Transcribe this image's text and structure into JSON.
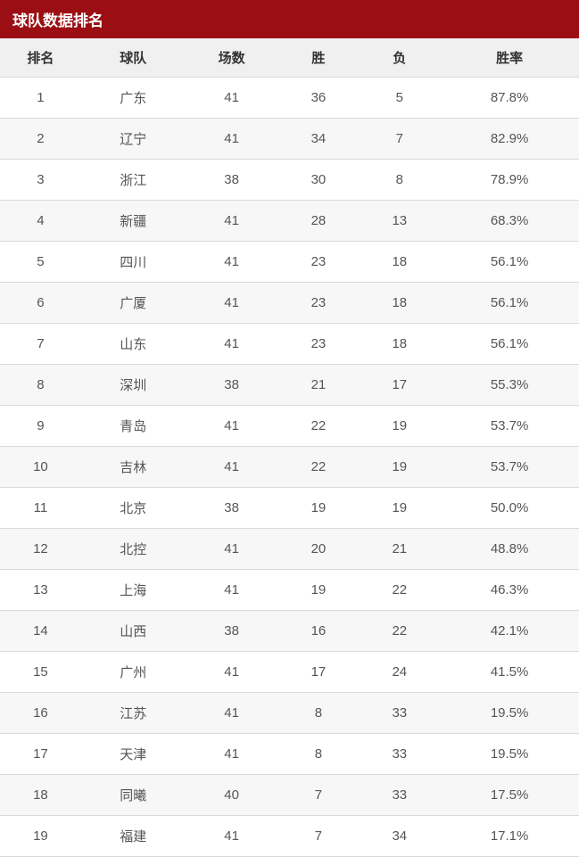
{
  "title": "球队数据排名",
  "styling": {
    "header_bg": "#9b0f14",
    "thead_bg": "#f0f0f0",
    "row_odd_bg": "#ffffff",
    "row_even_bg": "#f7f7f7",
    "border_color": "#d9d9d9",
    "th_text_color": "#333333",
    "td_text_color": "#555555",
    "title_fontsize": 17,
    "cell_fontsize": 15
  },
  "table": {
    "type": "table",
    "columns": [
      {
        "key": "rank",
        "label": "排名",
        "width_pct": 14,
        "align": "center"
      },
      {
        "key": "team",
        "label": "球队",
        "width_pct": 18,
        "align": "center"
      },
      {
        "key": "games",
        "label": "场数",
        "width_pct": 16,
        "align": "center"
      },
      {
        "key": "win",
        "label": "胜",
        "width_pct": 14,
        "align": "center"
      },
      {
        "key": "loss",
        "label": "负",
        "width_pct": 14,
        "align": "center"
      },
      {
        "key": "rate",
        "label": "胜率",
        "width_pct": 24,
        "align": "center"
      }
    ],
    "rows": [
      {
        "rank": "1",
        "team": "广东",
        "games": "41",
        "win": "36",
        "loss": "5",
        "rate": "87.8%"
      },
      {
        "rank": "2",
        "team": "辽宁",
        "games": "41",
        "win": "34",
        "loss": "7",
        "rate": "82.9%"
      },
      {
        "rank": "3",
        "team": "浙江",
        "games": "38",
        "win": "30",
        "loss": "8",
        "rate": "78.9%"
      },
      {
        "rank": "4",
        "team": "新疆",
        "games": "41",
        "win": "28",
        "loss": "13",
        "rate": "68.3%"
      },
      {
        "rank": "5",
        "team": "四川",
        "games": "41",
        "win": "23",
        "loss": "18",
        "rate": "56.1%"
      },
      {
        "rank": "6",
        "team": "广厦",
        "games": "41",
        "win": "23",
        "loss": "18",
        "rate": "56.1%"
      },
      {
        "rank": "7",
        "team": "山东",
        "games": "41",
        "win": "23",
        "loss": "18",
        "rate": "56.1%"
      },
      {
        "rank": "8",
        "team": "深圳",
        "games": "38",
        "win": "21",
        "loss": "17",
        "rate": "55.3%"
      },
      {
        "rank": "9",
        "team": "青岛",
        "games": "41",
        "win": "22",
        "loss": "19",
        "rate": "53.7%"
      },
      {
        "rank": "10",
        "team": "吉林",
        "games": "41",
        "win": "22",
        "loss": "19",
        "rate": "53.7%"
      },
      {
        "rank": "11",
        "team": "北京",
        "games": "38",
        "win": "19",
        "loss": "19",
        "rate": "50.0%"
      },
      {
        "rank": "12",
        "team": "北控",
        "games": "41",
        "win": "20",
        "loss": "21",
        "rate": "48.8%"
      },
      {
        "rank": "13",
        "team": "上海",
        "games": "41",
        "win": "19",
        "loss": "22",
        "rate": "46.3%"
      },
      {
        "rank": "14",
        "team": "山西",
        "games": "38",
        "win": "16",
        "loss": "22",
        "rate": "42.1%"
      },
      {
        "rank": "15",
        "team": "广州",
        "games": "41",
        "win": "17",
        "loss": "24",
        "rate": "41.5%"
      },
      {
        "rank": "16",
        "team": "江苏",
        "games": "41",
        "win": "8",
        "loss": "33",
        "rate": "19.5%"
      },
      {
        "rank": "17",
        "team": "天津",
        "games": "41",
        "win": "8",
        "loss": "33",
        "rate": "19.5%"
      },
      {
        "rank": "18",
        "team": "同曦",
        "games": "40",
        "win": "7",
        "loss": "33",
        "rate": "17.5%"
      },
      {
        "rank": "19",
        "team": "福建",
        "games": "41",
        "win": "7",
        "loss": "34",
        "rate": "17.1%"
      }
    ]
  }
}
